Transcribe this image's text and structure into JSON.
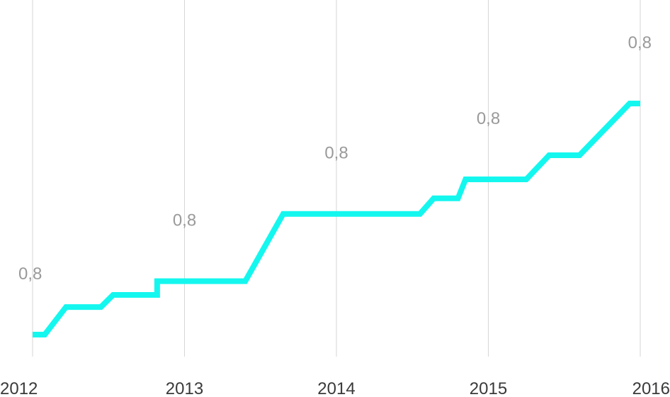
{
  "chart_data": {
    "type": "line",
    "title": "",
    "xlabel": "",
    "ylabel": "",
    "grid": "vertical",
    "x_ticks": [
      "2012",
      "2013",
      "2014",
      "2015",
      "2016"
    ],
    "series": [
      {
        "color": "#14f7ef",
        "points": [
          {
            "x": 2012.0,
            "y": 0.5
          },
          {
            "x": 2012.08,
            "y": 0.5
          },
          {
            "x": 2012.22,
            "y": 0.66
          },
          {
            "x": 2012.45,
            "y": 0.66
          },
          {
            "x": 2012.53,
            "y": 0.73
          },
          {
            "x": 2012.82,
            "y": 0.73
          },
          {
            "x": 2012.82,
            "y": 0.81
          },
          {
            "x": 2013.4,
            "y": 0.81
          },
          {
            "x": 2013.65,
            "y": 1.2
          },
          {
            "x": 2014.55,
            "y": 1.2
          },
          {
            "x": 2014.64,
            "y": 1.29
          },
          {
            "x": 2014.8,
            "y": 1.29
          },
          {
            "x": 2014.85,
            "y": 1.4
          },
          {
            "x": 2015.25,
            "y": 1.4
          },
          {
            "x": 2015.4,
            "y": 1.54
          },
          {
            "x": 2015.6,
            "y": 1.54
          },
          {
            "x": 2015.93,
            "y": 1.84
          },
          {
            "x": 2016.0,
            "y": 1.84
          }
        ]
      }
    ],
    "data_labels": [
      {
        "x": 2012,
        "text": "0,8"
      },
      {
        "x": 2013,
        "text": "0,8"
      },
      {
        "x": 2014,
        "text": "0,8"
      },
      {
        "x": 2015,
        "text": "0,8"
      },
      {
        "x": 2016,
        "text": "0,8"
      }
    ]
  }
}
